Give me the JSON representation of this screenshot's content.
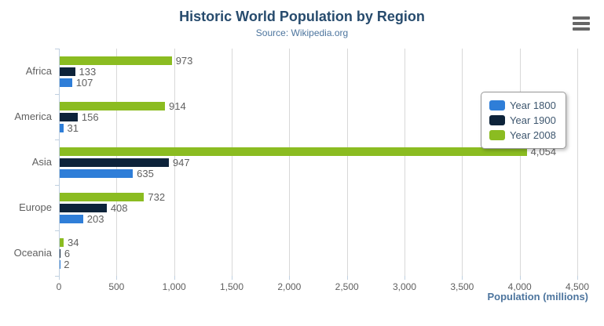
{
  "header": {
    "title": "Historic World Population by Region",
    "subtitle": "Source: Wikipedia.org"
  },
  "chart_data": {
    "type": "bar",
    "orientation": "horizontal",
    "title": "Historic World Population by Region",
    "subtitle": "Source: Wikipedia.org",
    "categories": [
      "Africa",
      "America",
      "Asia",
      "Europe",
      "Oceania"
    ],
    "series": [
      {
        "name": "Year 1800",
        "color": "#2f7ed8",
        "values": [
          107,
          31,
          635,
          203,
          2
        ]
      },
      {
        "name": "Year 1900",
        "color": "#0d233a",
        "values": [
          133,
          156,
          947,
          408,
          6
        ]
      },
      {
        "name": "Year 2008",
        "color": "#8bbc21",
        "values": [
          973,
          914,
          4054,
          732,
          34
        ]
      }
    ],
    "row_order_top_to_bottom": [
      "Year 2008",
      "Year 1900",
      "Year 1800"
    ],
    "xlabel": "Population (millions)",
    "xticks": [
      0,
      500,
      1000,
      1500,
      2000,
      2500,
      3000,
      3500,
      4000,
      4500
    ],
    "xtick_labels": [
      "0",
      "500",
      "1,000",
      "1,500",
      "2,000",
      "2,500",
      "3,000",
      "3,500",
      "4,000",
      "4,500"
    ],
    "xlim": [
      0,
      4500
    ],
    "grid": true,
    "data_labels": true,
    "legend_position": "right"
  },
  "legend": {
    "items": [
      {
        "label": "Year 1800",
        "color": "#2f7ed8"
      },
      {
        "label": "Year 1900",
        "color": "#0d233a"
      },
      {
        "label": "Year 2008",
        "color": "#8bbc21"
      }
    ]
  },
  "colors": {
    "title": "#274b6d",
    "subtitle": "#4d759e",
    "axis_title": "#4d759e",
    "tick_label": "#606060",
    "gridline": "#d8d8d8",
    "axis_line": "#c0d0e0",
    "legend_text": "#3e576f",
    "export_icon": "#666666"
  },
  "export_menu": {
    "icon": "hamburger"
  }
}
